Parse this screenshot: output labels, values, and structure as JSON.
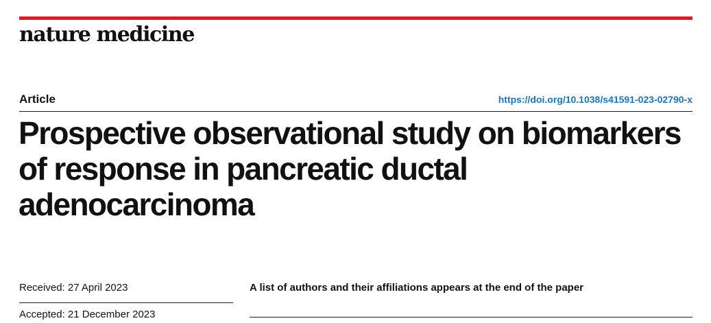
{
  "journal": {
    "name": "nature medicine"
  },
  "header": {
    "article_type": "Article",
    "doi": "https://doi.org/10.1038/s41591-023-02790-x"
  },
  "title": "Prospective observational study on biomarkers of response in pancreatic ductal adenocarcinoma",
  "dates": {
    "received_label": "Received:",
    "received_value": "27 April 2023",
    "accepted_label": "Accepted:",
    "accepted_value": "21 December 2023"
  },
  "authors_note": "A list of authors and their affiliations appears at the end of the paper",
  "colors": {
    "accent_rule": "#e3172d",
    "link": "#1b74b9",
    "text": "#111111"
  }
}
